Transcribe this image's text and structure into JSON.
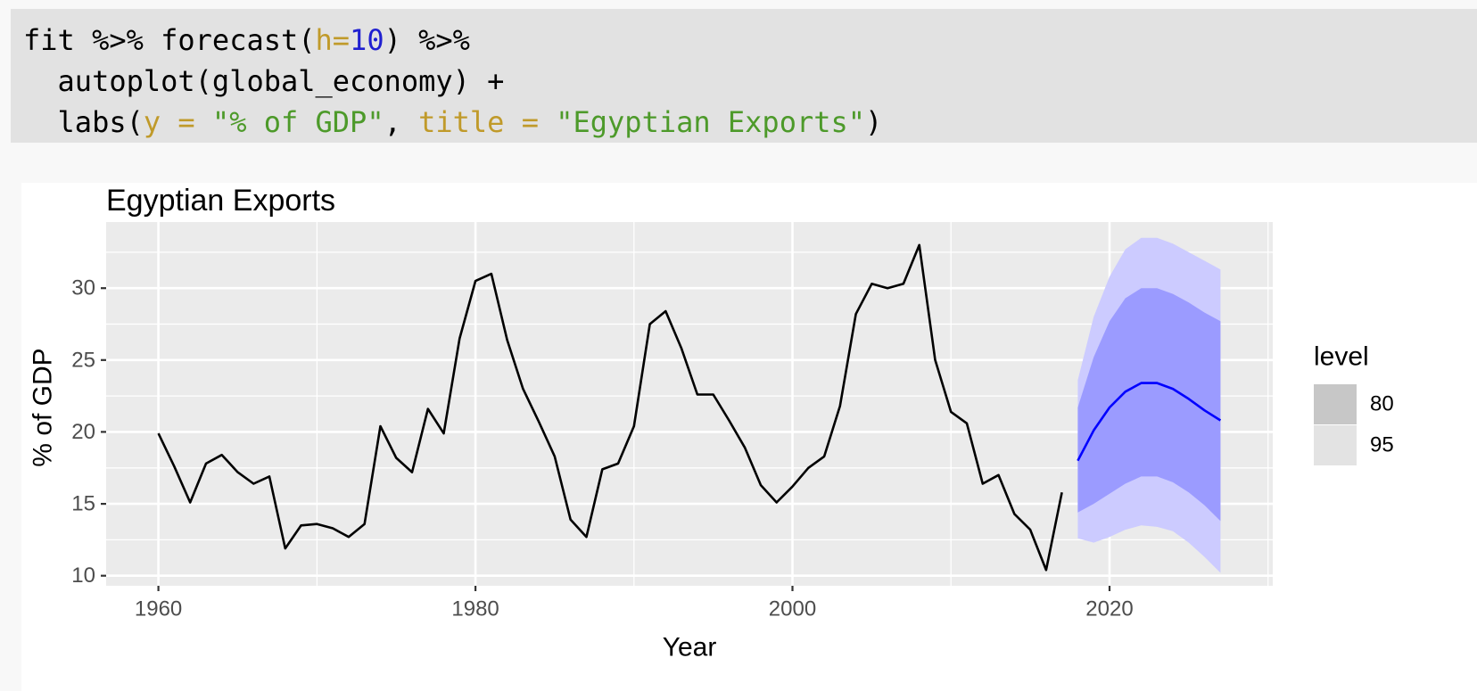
{
  "code": {
    "line1": {
      "a": "fit %>% forecast(",
      "arg": "h=",
      "num": "10",
      "b": ") %>%"
    },
    "line2": {
      "a": "  autoplot(global_economy) +"
    },
    "line3": {
      "a": "  labs(",
      "arg1": "y = ",
      "str1": "\"% of GDP\"",
      "sep": ", ",
      "arg2": "title = ",
      "str2": "\"Egyptian Exports\"",
      "b": ")"
    }
  },
  "chart_data": {
    "type": "line",
    "title": "Egyptian Exports",
    "xlabel": "Year",
    "ylabel": "% of GDP",
    "xlim": [
      1956.7,
      2030.3
    ],
    "ylim": [
      9.3,
      34.6
    ],
    "x_ticks": [
      1960,
      1980,
      2000,
      2020
    ],
    "y_ticks": [
      10,
      15,
      20,
      25,
      30
    ],
    "grid": true,
    "legend": {
      "position": "right",
      "title": "level",
      "entries": [
        "80",
        "95"
      ]
    },
    "colors": {
      "history": "#000000",
      "forecast": "#0000ff",
      "band80": "#9b9bff",
      "band95": "#cccbff",
      "panel": "#ebebeb",
      "legend80": "#c7c7c7",
      "legend95": "#e3e3e3"
    },
    "history": {
      "x": [
        1960,
        1961,
        1962,
        1963,
        1964,
        1965,
        1966,
        1967,
        1968,
        1969,
        1970,
        1971,
        1972,
        1973,
        1974,
        1975,
        1976,
        1977,
        1978,
        1979,
        1980,
        1981,
        1982,
        1983,
        1984,
        1985,
        1986,
        1987,
        1988,
        1989,
        1990,
        1991,
        1992,
        1993,
        1994,
        1995,
        1996,
        1997,
        1998,
        1999,
        2000,
        2001,
        2002,
        2003,
        2004,
        2005,
        2006,
        2007,
        2008,
        2009,
        2010,
        2011,
        2012,
        2013,
        2014,
        2015,
        2016,
        2017
      ],
      "y": [
        19.9,
        17.6,
        15.1,
        17.8,
        18.4,
        17.2,
        16.4,
        16.9,
        11.9,
        13.5,
        13.6,
        13.3,
        12.7,
        13.6,
        20.4,
        18.2,
        17.2,
        21.6,
        19.9,
        26.5,
        30.5,
        31.0,
        26.4,
        23.0,
        20.7,
        18.3,
        13.9,
        12.7,
        17.4,
        17.8,
        20.4,
        27.5,
        28.4,
        25.8,
        22.6,
        22.6,
        20.8,
        18.9,
        16.3,
        15.1,
        16.2,
        17.5,
        18.3,
        21.8,
        28.2,
        30.3,
        30.0,
        30.3,
        33.0,
        25.0,
        21.4,
        20.6,
        16.4,
        17.0,
        14.3,
        13.2,
        10.4,
        15.8
      ]
    },
    "forecast": {
      "x": [
        2018,
        2019,
        2020,
        2021,
        2022,
        2023,
        2024,
        2025,
        2026,
        2027
      ],
      "mean": [
        18.0,
        20.1,
        21.7,
        22.8,
        23.4,
        23.4,
        23.0,
        22.3,
        21.5,
        20.8
      ],
      "lo80": [
        14.4,
        15.0,
        15.7,
        16.4,
        16.9,
        16.9,
        16.5,
        15.8,
        14.9,
        13.8
      ],
      "hi80": [
        21.7,
        25.2,
        27.7,
        29.3,
        30.0,
        30.0,
        29.6,
        29.0,
        28.3,
        27.7
      ],
      "lo95": [
        12.6,
        12.3,
        12.7,
        13.2,
        13.5,
        13.4,
        13.1,
        12.3,
        11.3,
        10.2
      ],
      "hi95": [
        23.6,
        28.0,
        30.8,
        32.7,
        33.5,
        33.5,
        33.1,
        32.5,
        31.9,
        31.3
      ]
    }
  }
}
